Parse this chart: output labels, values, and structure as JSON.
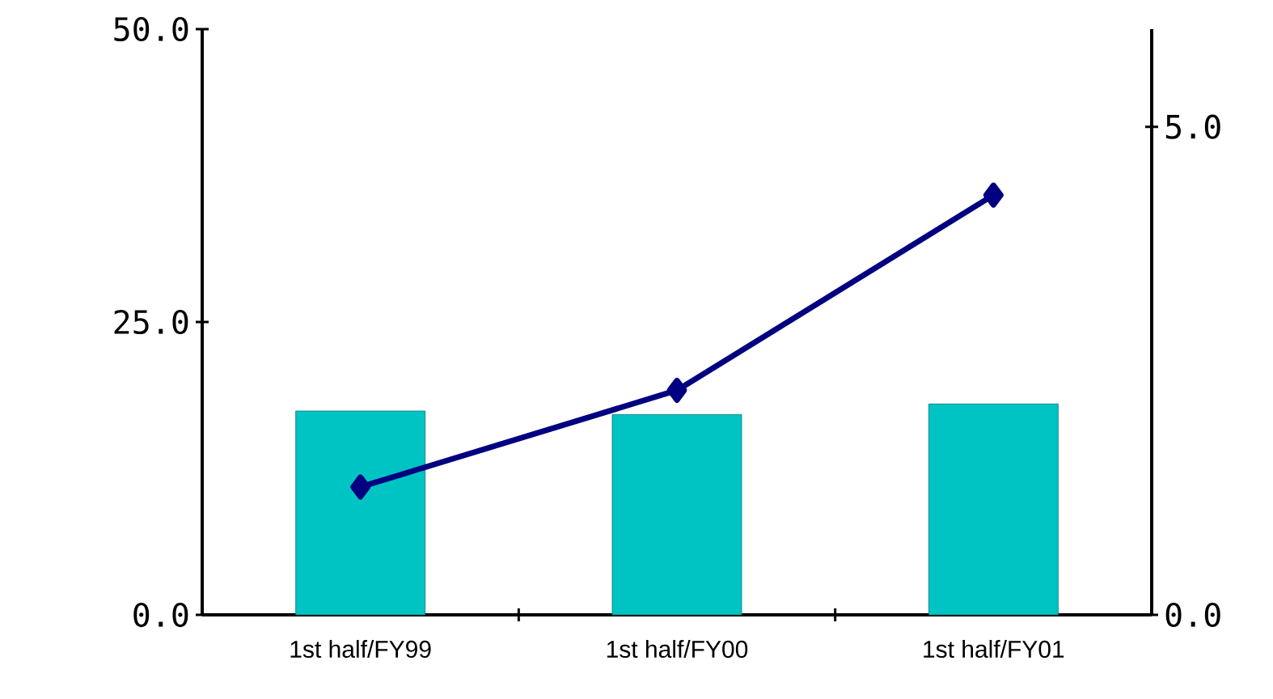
{
  "chart_data": {
    "type": "bar",
    "categories": [
      "1st half/FY99",
      "1st half/FY00",
      "1st half/FY01"
    ],
    "series": [
      {
        "color": "#00c4c4",
        "values": [
          17.4,
          17.1,
          18.0
        ]
      },
      {
        "type": "line",
        "axis": "y2",
        "color": "#000080",
        "marker": "diamond",
        "values": [
          1.31,
          2.3,
          4.3
        ]
      }
    ],
    "ylim": [
      0,
      50
    ],
    "yticks": [
      {
        "value": 0,
        "label": "0.0"
      },
      {
        "value": 25,
        "label": "25.0"
      },
      {
        "value": 50,
        "label": "50.0"
      }
    ],
    "y2lim": [
      0,
      6
    ],
    "y2ticks": [
      {
        "value": 0,
        "label": "0.0"
      },
      {
        "value": 5,
        "label": "5.0"
      }
    ]
  }
}
